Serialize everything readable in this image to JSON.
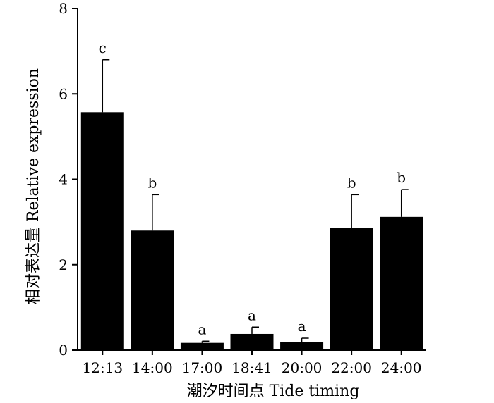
{
  "chart_data": {
    "type": "bar",
    "xlabel": "潮汐时间点 Tide timing",
    "ylabel": "相对表达量 Relative expression",
    "ylim": [
      0,
      8
    ],
    "yticks": [
      0,
      2,
      4,
      6,
      8
    ],
    "grid": false,
    "bar_color": "#000000",
    "categories": [
      "12:13",
      "14:00",
      "17:00",
      "18:41",
      "20:00",
      "22:00",
      "24:00"
    ],
    "values": [
      5.57,
      2.8,
      0.17,
      0.38,
      0.19,
      2.86,
      3.12
    ],
    "errors": [
      1.23,
      0.84,
      0.04,
      0.16,
      0.09,
      0.78,
      0.64
    ],
    "significance": [
      "c",
      "b",
      "a",
      "a",
      "a",
      "b",
      "b"
    ]
  }
}
